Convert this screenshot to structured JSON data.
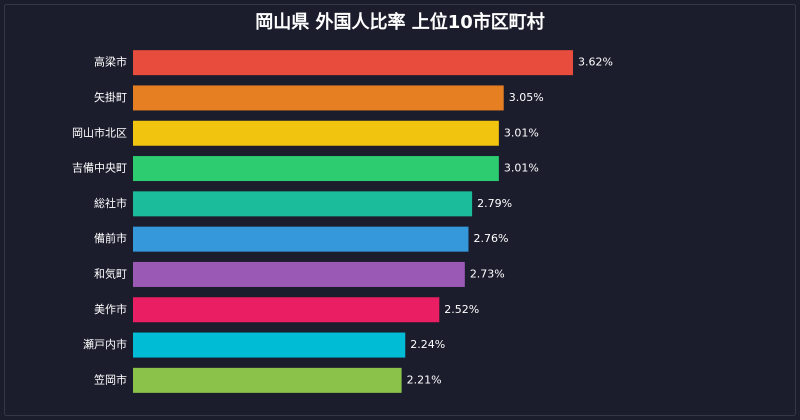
{
  "chart_data": {
    "type": "bar",
    "orientation": "horizontal",
    "title": "岡山県 外国人比率 上位10市区町村",
    "categories": [
      "高梁市",
      "矢掛町",
      "岡山市北区",
      "吉備中央町",
      "総社市",
      "備前市",
      "和気町",
      "美作市",
      "瀬戸内市",
      "笠岡市"
    ],
    "values": [
      3.62,
      3.05,
      3.01,
      3.01,
      2.79,
      2.76,
      2.73,
      2.52,
      2.24,
      2.21
    ],
    "value_labels": [
      "3.62%",
      "3.05%",
      "3.01%",
      "3.01%",
      "2.79%",
      "2.76%",
      "2.73%",
      "2.52%",
      "2.24%",
      "2.21%"
    ],
    "colors": [
      "#e74c3c",
      "#e67e22",
      "#f1c40f",
      "#2ecc71",
      "#1abc9c",
      "#3498db",
      "#9b59b6",
      "#e91e63",
      "#00bcd4",
      "#8bc34a"
    ]
  }
}
